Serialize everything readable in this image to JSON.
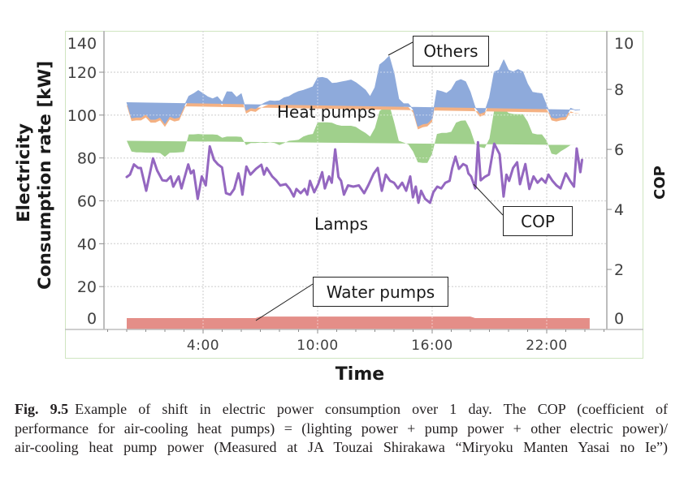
{
  "caption": {
    "label": "Fig. 9.5",
    "lines": [
      "Example of shift in electric power consumption over 1 day. The COP (coefficient of",
      "performance for air-cooling heat pumps) = (lighting power + pump power + other electric power)/",
      "air-cooling heat pump power (Measured at JA Touzai Shirakawa “Miryoku Manten Yasai no Ie”)"
    ]
  },
  "chart_data": {
    "type": "area",
    "title": "",
    "xlabel": "Time",
    "ylabel": "Electricity Consumption rate [kW]",
    "ylabel_lines": [
      "Electricity",
      "Consumption rate [kW]"
    ],
    "y2label": "COP",
    "xlim_hours": [
      -1.19,
      25.15
    ],
    "ylim": [
      0,
      140
    ],
    "y2lim": [
      0,
      10
    ],
    "x_ticks": [
      {
        "hour": 4,
        "label": "4:00"
      },
      {
        "hour": 10,
        "label": "10:00"
      },
      {
        "hour": 16,
        "label": "16:00"
      },
      {
        "hour": 22,
        "label": "22:00"
      }
    ],
    "y_ticks": [
      0,
      20,
      40,
      60,
      80,
      100,
      120,
      140
    ],
    "y2_ticks": [
      0,
      2,
      4,
      6,
      8,
      10
    ],
    "grid": true,
    "legend": "none (inline annotations)",
    "stacked": true,
    "time_start_hour": 0,
    "time_step_hours": 0.25,
    "stacked_series": [
      {
        "name": "Water pumps",
        "color": "#e48e88",
        "values": [
          5.3,
          5.3,
          5.3,
          5.3,
          5.3,
          5.3,
          5.3,
          5.3,
          5.3,
          5.3,
          5.3,
          5.3,
          5.3,
          5.3,
          5.3,
          5.3,
          5.3,
          5.3,
          5.3,
          5.3,
          5.3,
          5.3,
          5.3,
          5.3,
          5.3,
          5.3,
          5.3,
          5.3,
          6.0,
          6.0,
          6.0,
          6.0,
          6.0,
          6.0,
          6.0,
          6.0,
          6.0,
          6.0,
          6.0,
          6.0,
          6.0,
          6.0,
          6.0,
          6.0,
          6.0,
          6.0,
          6.0,
          6.0,
          6.0,
          6.0,
          6.0,
          6.0,
          6.0,
          6.0,
          6.0,
          6.0,
          6.0,
          6.0,
          6.0,
          6.0,
          6.0,
          6.0,
          6.0,
          6.0,
          6.0,
          6.0,
          6.0,
          6.0,
          6.0,
          6.0,
          6.0,
          6.0,
          6.0,
          5.3,
          5.3,
          5.3,
          5.3,
          5.3,
          5.3,
          5.3,
          5.3,
          5.3,
          5.3,
          5.3,
          5.3,
          5.3,
          5.3,
          5.3,
          5.3,
          5.3,
          5.3,
          5.3,
          5.3,
          5.3,
          5.3,
          5.3,
          5.3,
          5.3
        ]
      },
      {
        "name": "Lamps",
        "color": "#a0d08c",
        "values": [
          82.7,
          77.7,
          77.3,
          77.3,
          77.2,
          77.1,
          77.2,
          77.0,
          75.2,
          77.1,
          77.2,
          77.3,
          77.5,
          85.7,
          85.7,
          85.9,
          85.7,
          85.7,
          85.7,
          85.5,
          84.1,
          84.7,
          84.7,
          84.7,
          84.5,
          80.7,
          81.7,
          81.7,
          81.2,
          81.0,
          81.3,
          81.0,
          80.0,
          81.0,
          82.0,
          82.2,
          82.5,
          84.0,
          84.8,
          85.2,
          90.6,
          90.6,
          90.6,
          90.4,
          89.5,
          89.0,
          89.0,
          89.0,
          88.5,
          87.0,
          85.7,
          84.0,
          88.0,
          96.0,
          97.5,
          99.0,
          91.0,
          82.0,
          81.2,
          80.3,
          77.0,
          72.0,
          71.7,
          71.7,
          76.0,
          85.2,
          85.7,
          85.7,
          86.2,
          90.5,
          91.4,
          91.5,
          87.2,
          81.2,
          79.8,
          79.3,
          83.7,
          97.1,
          97.7,
          97.7,
          95.7,
          95.2,
          95.1,
          95.1,
          91.7,
          86.2,
          85.7,
          85.7,
          82.7,
          76.7,
          76.2,
          77.9,
          79.2,
          80.7,
          80.7,
          80.7
        ]
      },
      {
        "name": "Heat pumps",
        "color": "#f4b183",
        "values": [
          16.5,
          14.2,
          14.9,
          14.9,
          16.4,
          14.1,
          14.0,
          15.2,
          14.0,
          15.5,
          14.5,
          14.9,
          19.7,
          16.3,
          17.5,
          18.8,
          17.5,
          16.0,
          15.1,
          16.3,
          15.1,
          19.4,
          19.3,
          16.8,
          18.7,
          14.7,
          14.9,
          14.5,
          15.9,
          17.3,
          17.9,
          18.0,
          19.2,
          19.6,
          19.2,
          20.3,
          21.0,
          20.1,
          20.1,
          20.5,
          19.3,
          19.5,
          18.9,
          16.9,
          18.0,
          19.0,
          19.4,
          19.9,
          19.2,
          19.0,
          18.5,
          17.1,
          17.3,
          20.0,
          20.3,
          21.0,
          21.1,
          18.0,
          16.6,
          17.5,
          18.2,
          15.3,
          16.6,
          17.0,
          14.9,
          18.9,
          17.8,
          17.0,
          18.2,
          17.7,
          17.7,
          16.6,
          16.0,
          15.6,
          14.2,
          15.4,
          17.7,
          16.3,
          16.5,
          21.3,
          18.5,
          18.2,
          19.4,
          18.3,
          16.0,
          17.7,
          17.8,
          17.5,
          14.9,
          15.5,
          15.5,
          14.4,
          13.3,
          15.7,
          14.8,
          15.0
        ]
      },
      {
        "name": "Others",
        "color": "#8eaadb",
        "values": [
          1.5,
          1.5,
          1.5,
          1.5,
          1.5,
          1.5,
          1.5,
          1.5,
          1.5,
          1.5,
          1.5,
          1.5,
          1.5,
          1.5,
          1.5,
          1.5,
          1.5,
          1.5,
          1.5,
          1.5,
          1.5,
          1.5,
          1.5,
          1.5,
          1.5,
          1.5,
          1.5,
          1.5,
          1.5,
          1.5,
          1.5,
          1.5,
          1.5,
          1.5,
          1.5,
          1.5,
          1.5,
          1.5,
          1.5,
          1.5,
          1.5,
          1.5,
          1.5,
          1.5,
          1.5,
          1.5,
          1.5,
          1.5,
          1.5,
          1.5,
          1.5,
          1.5,
          1.5,
          1.5,
          1.5,
          1.5,
          1.5,
          1.5,
          1.5,
          1.5,
          1.5,
          1.5,
          1.5,
          1.5,
          1.5,
          1.5,
          1.5,
          1.5,
          1.5,
          1.5,
          1.5,
          1.5,
          1.5,
          1.5,
          1.5,
          1.5,
          1.5,
          1.5,
          1.5,
          1.5,
          1.5,
          1.5,
          1.5,
          1.5,
          1.5,
          1.5,
          1.5,
          1.5,
          1.5,
          1.5,
          1.5,
          1.5,
          1.5,
          1.5,
          1.5,
          1.5
        ]
      }
    ],
    "line_series": {
      "name": "COP",
      "axis": "right",
      "color": "#9467c0",
      "x_hours": [
        0,
        0.17,
        0.38,
        0.6,
        0.74,
        1.02,
        1.38,
        1.59,
        1.87,
        2.09,
        2.3,
        2.44,
        2.72,
        2.87,
        3.22,
        3.36,
        3.5,
        3.72,
        3.93,
        4.14,
        4.35,
        4.57,
        4.78,
        4.99,
        5.2,
        5.42,
        5.63,
        5.85,
        5.95,
        6.06,
        6.27,
        6.48,
        6.77,
        7.05,
        7.19,
        7.33,
        7.62,
        7.83,
        8.04,
        8.33,
        8.54,
        8.75,
        8.89,
        9.11,
        9.32,
        9.46,
        9.6,
        9.82,
        10.03,
        10.24,
        10.38,
        10.6,
        10.74,
        10.92,
        11.09,
        11.23,
        11.38,
        11.59,
        11.87,
        12.16,
        12.44,
        12.65,
        12.94,
        13.15,
        13.36,
        13.57,
        13.79,
        14.0,
        14.21,
        14.43,
        14.64,
        14.85,
        14.99,
        15.14,
        15.28,
        15.42,
        15.63,
        15.89,
        16.06,
        16.27,
        16.48,
        16.69,
        16.91,
        17.05,
        17.22,
        17.4,
        17.62,
        17.8,
        17.9,
        18.04,
        18.26,
        18.4,
        18.54,
        18.75,
        18.97,
        19.25,
        19.53,
        19.74,
        19.89,
        20.03,
        20.24,
        20.45,
        20.6,
        20.88,
        21.09,
        21.31,
        21.52,
        21.73,
        21.94,
        22.09,
        22.3,
        22.51,
        22.72,
        23.0,
        23.22,
        23.43,
        23.57,
        23.76,
        23.85
      ],
      "values": [
        5.08,
        5.16,
        5.5,
        5.38,
        5.38,
        4.62,
        5.7,
        5.3,
        4.97,
        4.95,
        5.1,
        4.76,
        5.1,
        4.7,
        5.5,
        5.2,
        5.3,
        4.35,
        5.1,
        4.8,
        6.1,
        5.65,
        5.5,
        5.4,
        4.54,
        4.49,
        4.68,
        5.2,
        4.95,
        4.49,
        5.43,
        5.16,
        5.35,
        5.49,
        5.16,
        5.38,
        5.1,
        4.97,
        4.8,
        4.84,
        4.68,
        4.43,
        4.68,
        4.54,
        4.68,
        4.49,
        4.95,
        4.57,
        4.84,
        5.24,
        4.7,
        5.1,
        4.89,
        6.0,
        5.08,
        4.95,
        4.49,
        4.8,
        4.76,
        4.8,
        4.54,
        4.8,
        5.2,
        5.38,
        4.62,
        5.16,
        4.95,
        4.89,
        4.7,
        4.89,
        4.62,
        5.1,
        4.4,
        4.76,
        4.22,
        4.62,
        4.35,
        4.22,
        4.57,
        4.76,
        4.7,
        4.89,
        4.95,
        5.38,
        5.76,
        5.35,
        5.51,
        5.45,
        5.2,
        5.1,
        4.7,
        6.24,
        4.97,
        5.08,
        5.16,
        6.19,
        5.84,
        4.43,
        5.16,
        4.95,
        5.38,
        5.57,
        4.84,
        5.51,
        4.68,
        5.1,
        4.89,
        5.03,
        4.89,
        5.16,
        4.95,
        4.8,
        4.7,
        5.2,
        4.95,
        4.76,
        6.03,
        5.24,
        5.65
      ]
    },
    "annotations": [
      {
        "text": "Others",
        "boxed": true,
        "target": "Others"
      },
      {
        "text": "Heat pumps",
        "boxed": false,
        "target": "Heat pumps"
      },
      {
        "text": "Lamps",
        "boxed": false,
        "target": "Lamps"
      },
      {
        "text": "COP",
        "boxed": true,
        "target": "COP"
      },
      {
        "text": "Water pumps",
        "boxed": true,
        "target": "Water pumps"
      }
    ]
  }
}
